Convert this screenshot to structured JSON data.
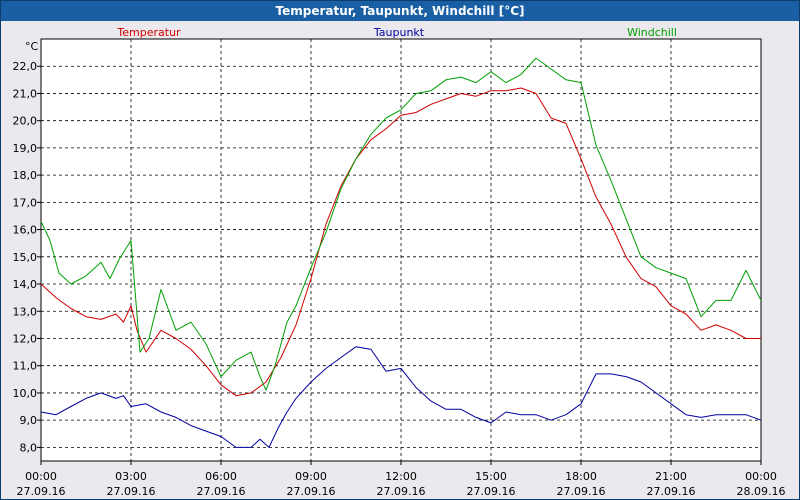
{
  "window": {
    "title": "Temperatur, Taupunkt, Windchill [°C]"
  },
  "chart_data": {
    "type": "line",
    "title": "Temperatur, Taupunkt, Windchill [°C]",
    "ylabel": "°C",
    "xlabel": "",
    "ylim": [
      7.5,
      23.0
    ],
    "xlim": [
      0,
      24
    ],
    "grid": true,
    "legend_position": "top",
    "y_ticks": [
      "8,0",
      "9,0",
      "10,0",
      "11,0",
      "12,0",
      "13,0",
      "14,0",
      "15,0",
      "16,0",
      "17,0",
      "18,0",
      "19,0",
      "20,0",
      "21,0",
      "22,0"
    ],
    "x_ticks": [
      {
        "time": "00:00",
        "date": "27.09.16"
      },
      {
        "time": "03:00",
        "date": "27.09.16"
      },
      {
        "time": "06:00",
        "date": "27.09.16"
      },
      {
        "time": "09:00",
        "date": "27.09.16"
      },
      {
        "time": "12:00",
        "date": "27.09.16"
      },
      {
        "time": "15:00",
        "date": "27.09.16"
      },
      {
        "time": "18:00",
        "date": "27.09.16"
      },
      {
        "time": "21:00",
        "date": "27.09.16"
      },
      {
        "time": "00:00",
        "date": "28.09.16"
      }
    ],
    "series": [
      {
        "name": "Temperatur",
        "color": "#d00000",
        "x": [
          0,
          0.5,
          1,
          1.5,
          2,
          2.5,
          2.75,
          3,
          3.2,
          3.5,
          4,
          4.5,
          5,
          5.5,
          6,
          6.5,
          7,
          7.5,
          8,
          8.5,
          9,
          9.5,
          10,
          10.5,
          11,
          11.5,
          12,
          12.5,
          13,
          13.5,
          14,
          14.5,
          15,
          15.5,
          16,
          16.5,
          17,
          17.5,
          18,
          18.5,
          19,
          19.5,
          20,
          20.5,
          21,
          21.5,
          22,
          22.5,
          23,
          23.5,
          24
        ],
        "values": [
          14.0,
          13.5,
          13.1,
          12.8,
          12.7,
          12.9,
          12.6,
          13.2,
          12.3,
          11.5,
          12.3,
          12.0,
          11.6,
          11.0,
          10.3,
          9.9,
          10.0,
          10.4,
          11.3,
          12.5,
          14.2,
          16.2,
          17.6,
          18.6,
          19.3,
          19.7,
          20.2,
          20.3,
          20.6,
          20.8,
          21.0,
          20.9,
          21.1,
          21.1,
          21.2,
          21.0,
          20.1,
          19.9,
          18.6,
          17.2,
          16.2,
          15.0,
          14.2,
          13.9,
          13.2,
          12.9,
          12.3,
          12.5,
          12.3,
          12.0,
          12.0
        ]
      },
      {
        "name": "Taupunkt",
        "color": "#0000a0",
        "x": [
          0,
          0.5,
          1,
          1.5,
          2,
          2.5,
          2.75,
          3,
          3.5,
          4,
          4.5,
          5,
          5.5,
          6,
          6.5,
          7,
          7.3,
          7.6,
          7.9,
          8.2,
          8.5,
          9,
          9.5,
          10,
          10.5,
          11,
          11.5,
          12,
          12.5,
          13,
          13.5,
          14,
          14.5,
          15,
          15.5,
          16,
          16.5,
          17,
          17.5,
          18,
          18.5,
          19,
          19.5,
          20,
          20.5,
          21,
          21.5,
          22,
          22.5,
          23,
          23.5,
          24
        ],
        "values": [
          9.3,
          9.2,
          9.5,
          9.8,
          10.0,
          9.8,
          9.9,
          9.5,
          9.6,
          9.3,
          9.1,
          8.8,
          8.6,
          8.4,
          8.0,
          8.0,
          8.3,
          8.0,
          8.7,
          9.3,
          9.8,
          10.4,
          10.9,
          11.3,
          11.7,
          11.6,
          10.8,
          10.9,
          10.2,
          9.7,
          9.4,
          9.4,
          9.1,
          8.9,
          9.3,
          9.2,
          9.2,
          9.0,
          9.2,
          9.6,
          10.7,
          10.7,
          10.6,
          10.4,
          10.0,
          9.6,
          9.2,
          9.1,
          9.2,
          9.2,
          9.2,
          9.0
        ]
      },
      {
        "name": "Windchill",
        "color": "#00a000",
        "x": [
          0,
          0.3,
          0.6,
          1,
          1.5,
          2,
          2.3,
          2.6,
          3,
          3.3,
          3.6,
          4,
          4.5,
          5,
          5.5,
          6,
          6.5,
          7,
          7.3,
          7.5,
          7.8,
          8.2,
          8.5,
          9,
          9.5,
          10,
          10.5,
          11,
          11.5,
          12,
          12.5,
          13,
          13.5,
          14,
          14.5,
          15,
          15.5,
          16,
          16.5,
          17,
          17.5,
          18,
          18.5,
          19,
          19.5,
          20,
          20.5,
          21,
          21.5,
          22,
          22.5,
          23,
          23.5,
          24
        ],
        "values": [
          16.3,
          15.6,
          14.4,
          14.0,
          14.3,
          14.8,
          14.2,
          14.9,
          15.6,
          11.5,
          12.0,
          13.8,
          12.3,
          12.6,
          11.8,
          10.6,
          11.2,
          11.5,
          10.6,
          10.1,
          11.0,
          12.6,
          13.2,
          14.6,
          15.9,
          17.5,
          18.6,
          19.5,
          20.1,
          20.4,
          21.0,
          21.1,
          21.5,
          21.6,
          21.4,
          21.8,
          21.4,
          21.7,
          22.3,
          21.9,
          21.5,
          21.4,
          19.1,
          17.8,
          16.4,
          15.0,
          14.6,
          14.4,
          14.2,
          12.8,
          13.4,
          13.4,
          14.5,
          13.4
        ]
      }
    ]
  }
}
